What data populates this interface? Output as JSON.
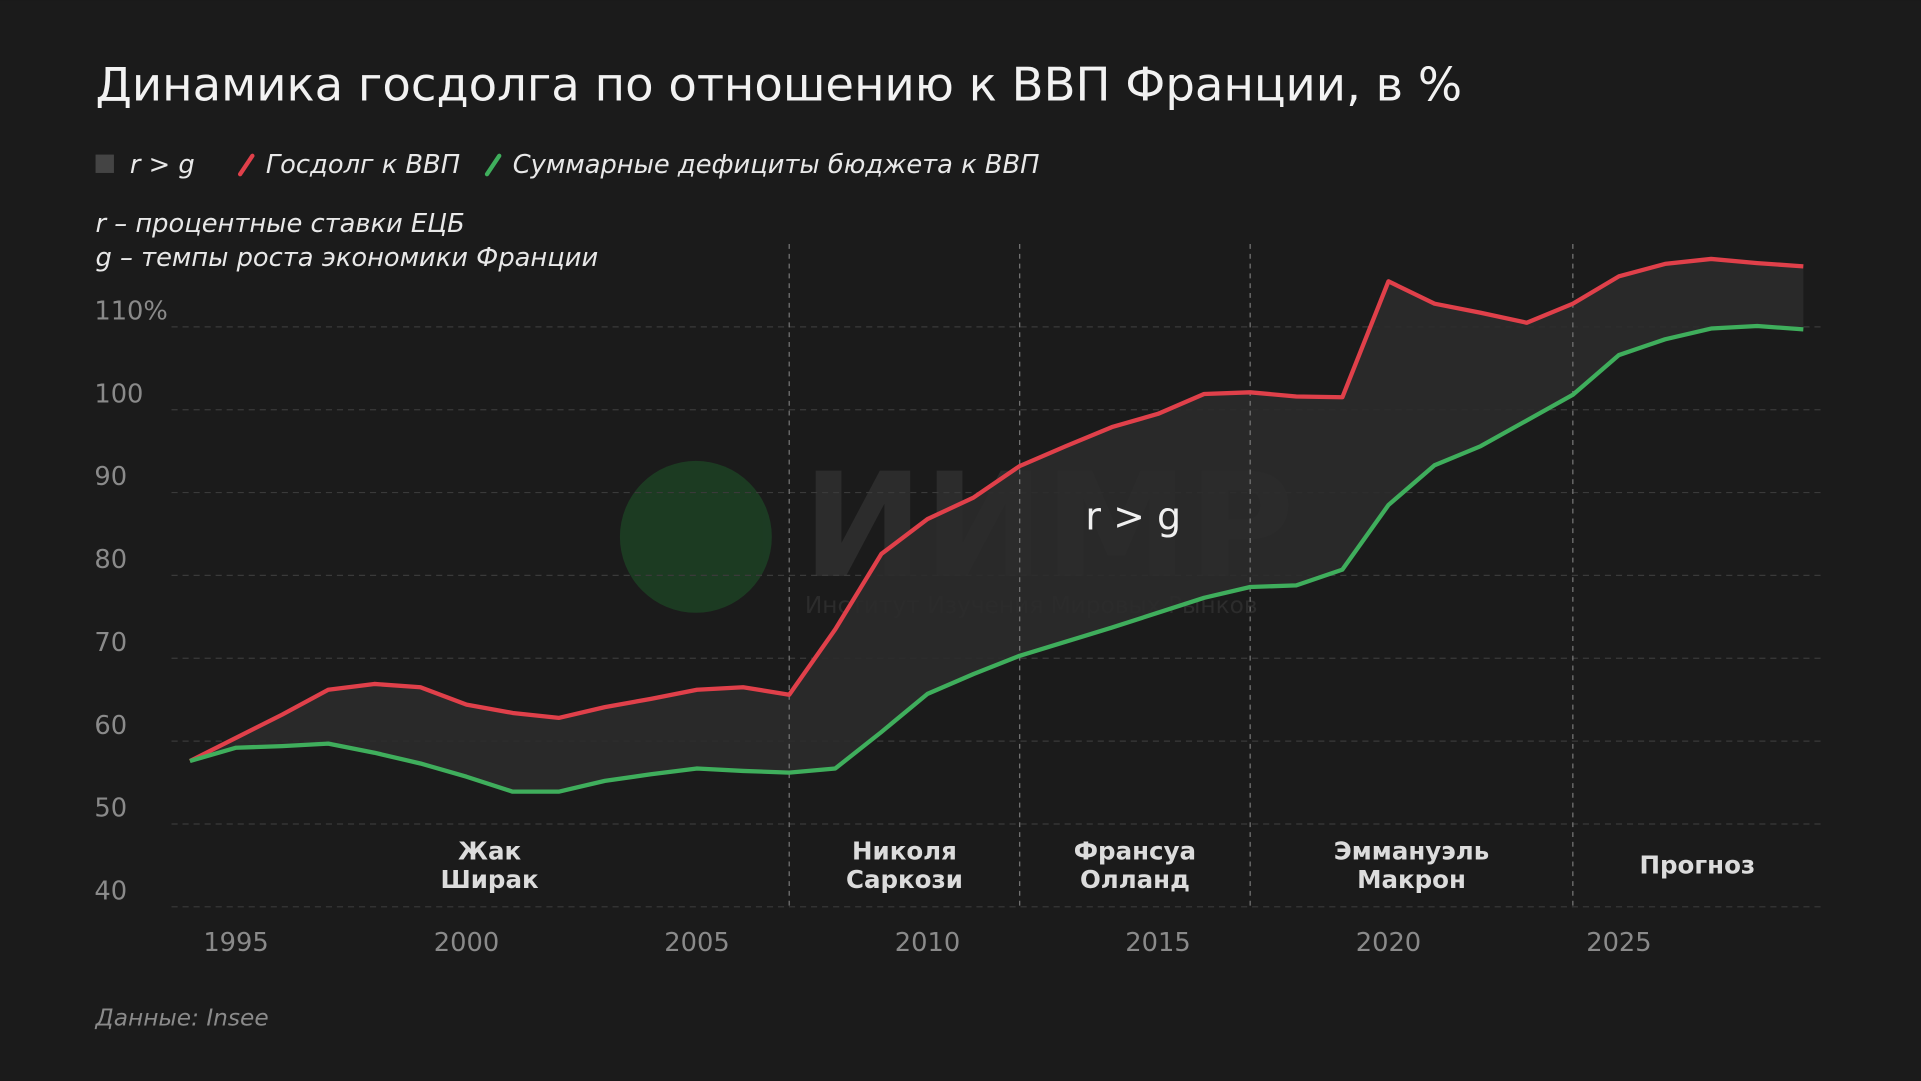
{
  "chart_data": {
    "type": "line",
    "title": "Динамика госдолга по отношению к ВВП Франции, в %",
    "area": {
      "name": "r > g",
      "color": "#2b2b2b"
    },
    "notes": [
      "r – процентные ставки ЕЦБ",
      "g – темпы роста экономики Франции"
    ],
    "area_label": "r > g",
    "source": "Данные: Insee",
    "watermark": {
      "title": "ИИМР",
      "subtitle": "Институт Изучения Мировых Рынков"
    },
    "x": [
      1994,
      1995,
      1996,
      1997,
      1998,
      1999,
      2000,
      2001,
      2002,
      2003,
      2004,
      2005,
      2006,
      2007,
      2008,
      2009,
      2010,
      2011,
      2012,
      2013,
      2014,
      2015,
      2016,
      2017,
      2018,
      2019,
      2020,
      2021,
      2022,
      2023,
      2024,
      2025,
      2026,
      2027,
      2028,
      2029
    ],
    "series": [
      {
        "name": "Госдолг к ВВП",
        "color": "#e0404a",
        "values": [
          57.6,
          60.4,
          63.2,
          66.2,
          66.9,
          66.5,
          64.4,
          63.4,
          62.8,
          64.1,
          65.1,
          66.2,
          66.5,
          65.6,
          73.5,
          82.6,
          86.8,
          89.4,
          93.2,
          95.6,
          97.9,
          99.5,
          101.9,
          102.1,
          101.6,
          101.5,
          115.5,
          112.8,
          111.7,
          110.5,
          112.8,
          116.1,
          117.6,
          118.2,
          117.7,
          117.3
        ]
      },
      {
        "name": "Суммарные дефициты бюджета к ВВП",
        "color": "#3fae5c",
        "values": [
          57.6,
          59.2,
          59.4,
          59.7,
          58.6,
          57.3,
          55.7,
          53.9,
          53.9,
          55.2,
          56.0,
          56.7,
          56.4,
          56.2,
          56.7,
          61.1,
          65.7,
          68.1,
          70.3,
          72.0,
          73.7,
          75.5,
          77.3,
          78.6,
          78.8,
          80.7,
          88.5,
          93.3,
          95.6,
          98.7,
          101.8,
          106.6,
          108.5,
          109.8,
          110.1,
          109.7
        ]
      }
    ],
    "xlim": [
      1993.6,
      2029.4
    ],
    "xticks": [
      1995,
      2000,
      2005,
      2010,
      2015,
      2020,
      2025
    ],
    "ylim": [
      40,
      120
    ],
    "yticks": [
      40,
      50,
      60,
      70,
      80,
      90,
      100,
      {
        "value": 110,
        "label": "110%"
      }
    ],
    "grid": true,
    "dividers": [
      2007,
      2012,
      2017,
      2024
    ],
    "periods": [
      {
        "label": [
          "Жак",
          "Ширак"
        ]
      },
      {
        "label": [
          "Николя",
          "Саркози"
        ]
      },
      {
        "label": [
          "Франсуа",
          "Олланд"
        ]
      },
      {
        "label": [
          "Эммануэль",
          "Макрон"
        ]
      },
      {
        "label": [
          "Прогноз"
        ]
      }
    ]
  }
}
